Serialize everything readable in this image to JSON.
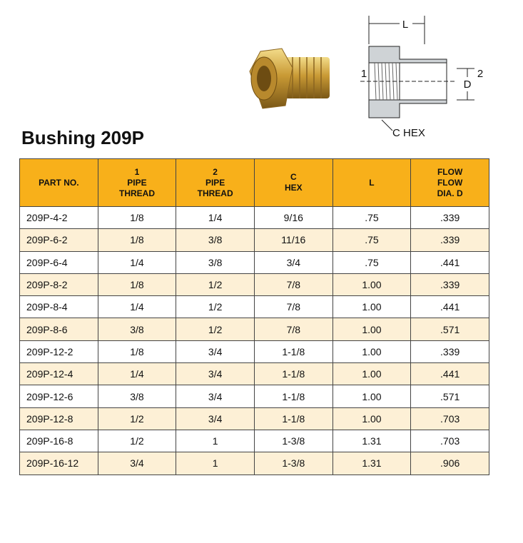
{
  "diagram": {
    "labels": {
      "length": "L",
      "port1": "1",
      "port2": "2",
      "flow": "D",
      "hex": "C HEX"
    }
  },
  "title": "Bushing 209P",
  "table": {
    "header": [
      [
        "PART NO."
      ],
      [
        "1",
        "PIPE",
        "THREAD"
      ],
      [
        "2",
        "PIPE",
        "THREAD"
      ],
      [
        "C",
        "HEX"
      ],
      [
        "L"
      ],
      [
        "FLOW",
        "FLOW",
        "DIA. D"
      ]
    ],
    "rows": [
      [
        "209P-4-2",
        "1/8",
        "1/4",
        "9/16",
        ".75",
        ".339"
      ],
      [
        "209P-6-2",
        "1/8",
        "3/8",
        "11/16",
        ".75",
        ".339"
      ],
      [
        "209P-6-4",
        "1/4",
        "3/8",
        "3/4",
        ".75",
        ".441"
      ],
      [
        "209P-8-2",
        "1/8",
        "1/2",
        "7/8",
        "1.00",
        ".339"
      ],
      [
        "209P-8-4",
        "1/4",
        "1/2",
        "7/8",
        "1.00",
        ".441"
      ],
      [
        "209P-8-6",
        "3/8",
        "1/2",
        "7/8",
        "1.00",
        ".571"
      ],
      [
        "209P-12-2",
        "1/8",
        "3/4",
        "1-1/8",
        "1.00",
        ".339"
      ],
      [
        "209P-12-4",
        "1/4",
        "3/4",
        "1-1/8",
        "1.00",
        ".441"
      ],
      [
        "209P-12-6",
        "3/8",
        "3/4",
        "1-1/8",
        "1.00",
        ".571"
      ],
      [
        "209P-12-8",
        "1/2",
        "3/4",
        "1-1/8",
        "1.00",
        ".703"
      ],
      [
        "209P-16-8",
        "1/2",
        "1",
        "1-3/8",
        "1.31",
        ".703"
      ],
      [
        "209P-16-12",
        "3/4",
        "1",
        "1-3/8",
        "1.31",
        ".906"
      ]
    ]
  }
}
